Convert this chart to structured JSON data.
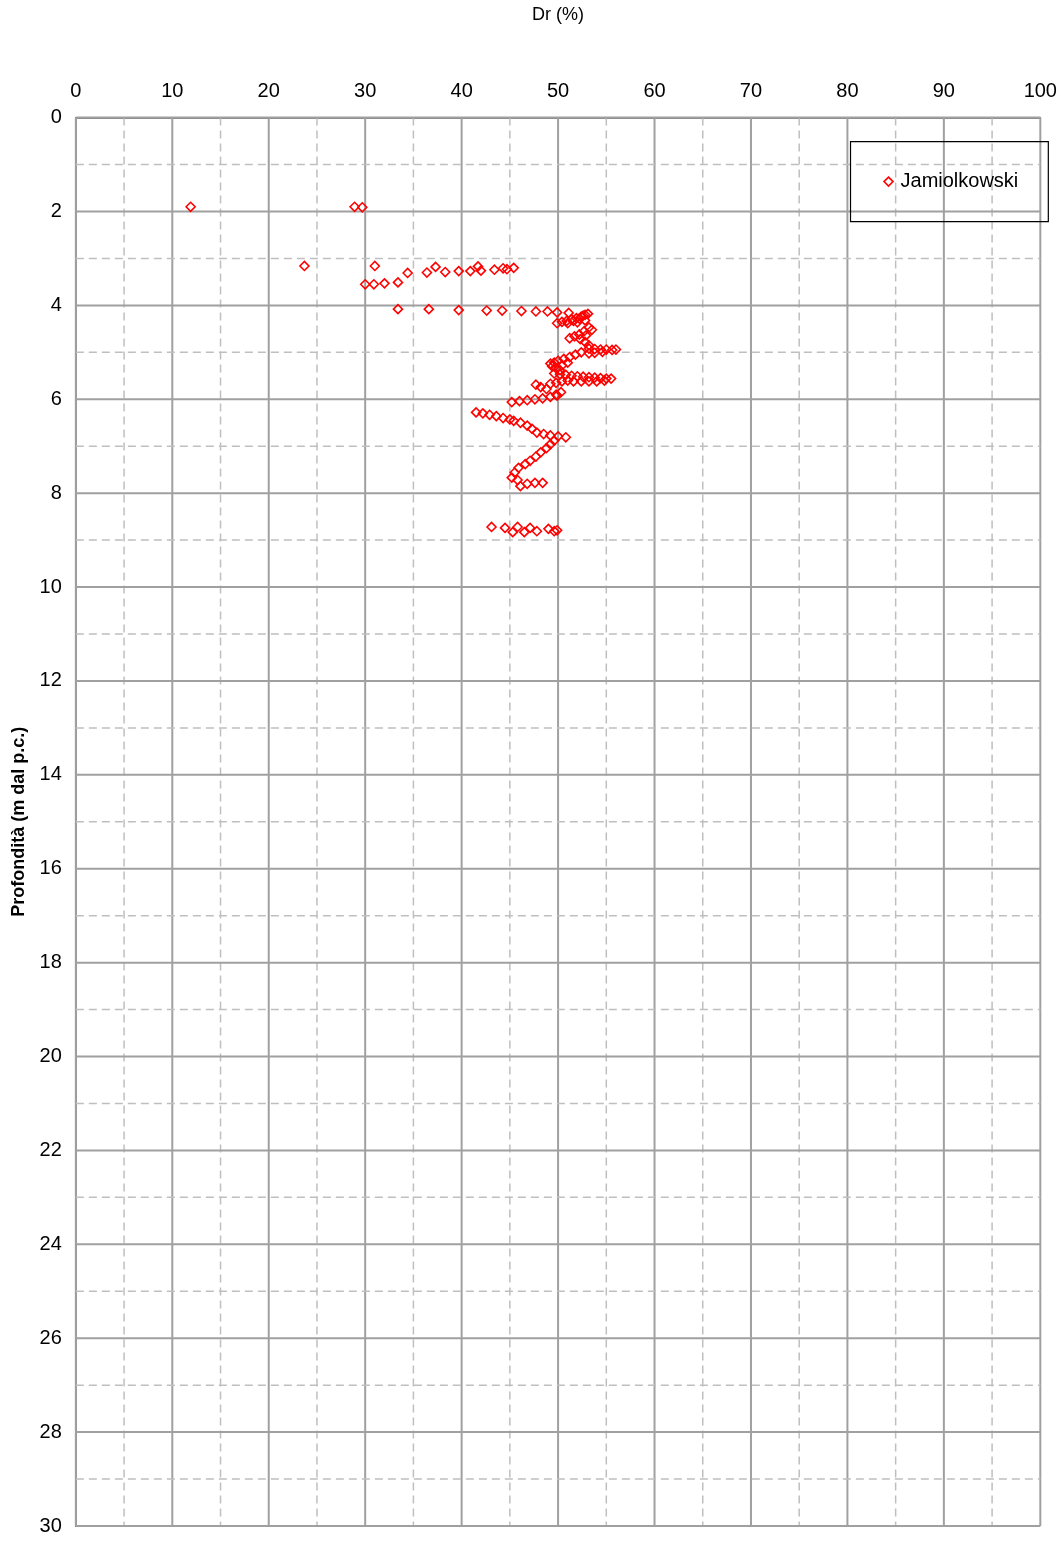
{
  "chart_data": {
    "type": "scatter",
    "xlabel": "Dr (%)",
    "ylabel": "Profondità (m dal p.c.)",
    "xlim": [
      0,
      100
    ],
    "xticks": [
      0,
      {
        "value": 5,
        "label": null
      },
      10,
      {
        "value": 15,
        "label": null
      },
      20,
      {
        "value": 25,
        "label": null
      },
      30,
      {
        "value": 35,
        "label": null
      },
      40,
      {
        "value": 45,
        "label": null
      },
      50,
      {
        "value": 55,
        "label": null
      },
      60,
      {
        "value": 65,
        "label": null
      },
      70,
      {
        "value": 75,
        "label": null
      },
      80,
      {
        "value": 85,
        "label": null
      },
      90,
      {
        "value": 95,
        "label": null
      },
      100
    ],
    "ylim": [
      30,
      0
    ],
    "yticks": [
      0,
      {
        "value": 1,
        "label": null
      },
      2,
      {
        "value": 3,
        "label": null
      },
      4,
      {
        "value": 5,
        "label": null
      },
      6,
      {
        "value": 7,
        "label": null
      },
      8,
      {
        "value": 9,
        "label": null
      },
      10,
      {
        "value": 11,
        "label": null
      },
      12,
      {
        "value": 13,
        "label": null
      },
      14,
      {
        "value": 15,
        "label": null
      },
      16,
      {
        "value": 17,
        "label": null
      },
      18,
      {
        "value": 19,
        "label": null
      },
      20,
      {
        "value": 21,
        "label": null
      },
      22,
      {
        "value": 23,
        "label": null
      },
      24,
      {
        "value": 25,
        "label": null
      },
      26,
      {
        "value": 27,
        "label": null
      },
      28,
      {
        "value": 29,
        "label": null
      },
      30
    ],
    "grid": true,
    "legend": "top right",
    "marker": "diamond",
    "series": [
      {
        "name": "Jamiolkowski",
        "color": "#ff0000",
        "x": [
          11.9,
          28.9,
          29.7,
          23.7,
          31.0,
          30.0,
          30.9,
          32.0,
          33.4,
          34.4,
          36.4,
          37.3,
          38.3,
          39.7,
          40.9,
          41.7,
          42.0,
          43.4,
          44.3,
          44.7,
          45.4,
          33.4,
          36.6,
          39.7,
          42.6,
          44.2,
          46.2,
          47.7,
          48.9,
          49.9,
          51.1,
          49.9,
          50.4,
          50.9,
          51.4,
          51.9,
          52.4,
          52.8,
          53.1,
          52.6,
          52.2,
          51.6,
          51.0,
          52.0,
          52.8,
          51.2,
          51.7,
          52.2,
          52.7,
          53.2,
          53.5,
          52.9,
          52.3,
          52.8,
          53.2,
          53.2,
          53.8,
          54.4,
          55.0,
          55.6,
          56.0,
          54.6,
          53.8,
          53.2,
          52.4,
          51.8,
          51.2,
          50.6,
          50.0,
          49.6,
          49.2,
          49.4,
          49.8,
          50.4,
          51.0,
          50.2,
          49.6,
          50.2,
          50.8,
          51.4,
          52.0,
          52.6,
          53.2,
          53.8,
          54.4,
          55.0,
          55.5,
          54.8,
          54.0,
          53.2,
          52.4,
          51.6,
          51.0,
          50.4,
          49.8,
          49.2,
          47.7,
          48.2,
          48.8,
          50.3,
          49.8,
          49.9,
          49.2,
          48.4,
          47.6,
          46.8,
          46.0,
          45.2,
          41.5,
          42.2,
          42.9,
          43.6,
          44.3,
          45.0,
          45.4,
          46.1,
          46.8,
          47.3,
          47.8,
          48.5,
          49.2,
          50.0,
          50.8,
          49.6,
          49.2,
          48.8,
          48.2,
          47.7,
          47.1,
          46.6,
          45.9,
          45.5,
          45.2,
          45.8,
          46.1,
          46.8,
          47.6,
          48.4,
          43.1,
          44.5,
          45.3,
          45.8,
          46.5,
          47.1,
          47.8,
          49.0,
          49.6,
          49.9
        ],
        "values": [
          1.9,
          1.9,
          1.91,
          3.16,
          3.16,
          3.55,
          3.55,
          3.53,
          3.51,
          3.31,
          3.3,
          3.18,
          3.29,
          3.27,
          3.27,
          3.17,
          3.26,
          3.24,
          3.21,
          3.23,
          3.2,
          4.08,
          4.08,
          4.1,
          4.11,
          4.11,
          4.12,
          4.13,
          4.13,
          4.15,
          4.16,
          4.38,
          4.35,
          4.33,
          4.3,
          4.27,
          4.24,
          4.2,
          4.18,
          4.22,
          4.28,
          4.33,
          4.38,
          4.36,
          4.32,
          4.7,
          4.66,
          4.62,
          4.55,
          4.47,
          4.52,
          4.64,
          4.72,
          4.78,
          4.85,
          4.92,
          4.93,
          4.94,
          4.94,
          4.95,
          4.94,
          4.99,
          5.01,
          5.02,
          5.0,
          5.05,
          5.1,
          5.14,
          5.18,
          5.22,
          5.24,
          5.3,
          5.34,
          5.28,
          5.22,
          5.38,
          5.45,
          5.47,
          5.48,
          5.5,
          5.51,
          5.52,
          5.53,
          5.54,
          5.55,
          5.56,
          5.56,
          5.6,
          5.62,
          5.62,
          5.62,
          5.62,
          5.6,
          5.62,
          5.65,
          5.67,
          5.69,
          5.74,
          5.78,
          5.85,
          5.9,
          5.92,
          5.95,
          5.98,
          6.0,
          6.02,
          6.04,
          6.06,
          6.28,
          6.3,
          6.33,
          6.36,
          6.4,
          6.43,
          6.46,
          6.5,
          6.56,
          6.63,
          6.71,
          6.74,
          6.77,
          6.79,
          6.81,
          6.88,
          6.96,
          7.04,
          7.13,
          7.22,
          7.31,
          7.38,
          7.46,
          7.56,
          7.67,
          7.72,
          7.85,
          7.8,
          7.78,
          7.78,
          8.72,
          8.74,
          8.83,
          8.72,
          8.83,
          8.74,
          8.81,
          8.76,
          8.81,
          8.79
        ]
      }
    ]
  }
}
